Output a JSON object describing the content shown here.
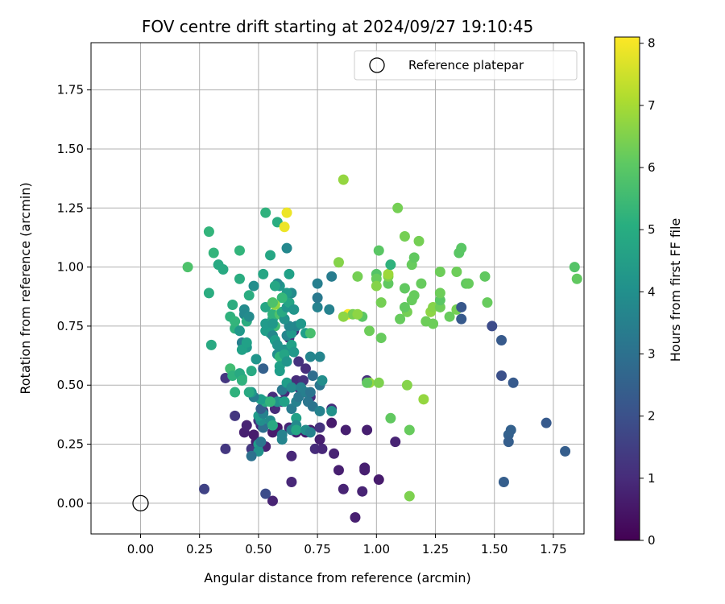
{
  "chart_data": {
    "type": "scatter",
    "title": "FOV centre drift starting at 2024/09/27 19:10:45",
    "xlabel": "Angular distance from reference (arcmin)",
    "ylabel": "Rotation from reference (arcmin)",
    "xlim": [
      -0.21,
      1.88
    ],
    "ylim": [
      -0.13,
      1.95
    ],
    "xticks": [
      "0.00",
      "0.25",
      "0.50",
      "0.75",
      "1.00",
      "1.25",
      "1.50",
      "1.75"
    ],
    "xtick_values": [
      0,
      0.25,
      0.5,
      0.75,
      1.0,
      1.25,
      1.5,
      1.75
    ],
    "yticks": [
      "0.00",
      "0.25",
      "0.50",
      "0.75",
      "1.00",
      "1.25",
      "1.50",
      "1.75"
    ],
    "ytick_values": [
      0,
      0.25,
      0.5,
      0.75,
      1.0,
      1.25,
      1.5,
      1.75
    ],
    "grid": true,
    "colorbar": {
      "label": "Hours from first FF file",
      "range": [
        0,
        8.1
      ],
      "ticks": [
        "0",
        "1",
        "2",
        "3",
        "4",
        "5",
        "6",
        "7",
        "8"
      ],
      "tick_values": [
        0,
        1,
        2,
        3,
        4,
        5,
        6,
        7,
        8
      ],
      "colormap": "viridis"
    },
    "legend": {
      "position": "top-right",
      "label": "Reference platepar"
    },
    "reference_point": {
      "x": 0.0,
      "y": 0.0
    },
    "points": [
      [
        0.91,
        -0.06,
        0.7
      ],
      [
        0.86,
        0.06,
        0.8
      ],
      [
        0.94,
        0.05,
        0.8
      ],
      [
        1.01,
        0.1,
        0.6
      ],
      [
        0.56,
        0.01,
        0.8
      ],
      [
        0.64,
        0.09,
        0.9
      ],
      [
        0.27,
        0.06,
        1.6
      ],
      [
        0.53,
        0.04,
        1.9
      ],
      [
        0.84,
        0.14,
        0.7
      ],
      [
        0.95,
        0.14,
        0.7
      ],
      [
        0.95,
        0.15,
        0.7
      ],
      [
        0.82,
        0.21,
        0.8
      ],
      [
        0.64,
        0.2,
        0.9
      ],
      [
        0.74,
        0.23,
        1.0
      ],
      [
        0.77,
        0.23,
        0.9
      ],
      [
        0.47,
        0.23,
        1.3
      ],
      [
        0.36,
        0.23,
        1.3
      ],
      [
        0.53,
        0.24,
        0.8
      ],
      [
        0.49,
        0.26,
        0.7
      ],
      [
        0.48,
        0.29,
        0.6
      ],
      [
        0.44,
        0.3,
        0.7
      ],
      [
        0.56,
        0.3,
        0.6
      ],
      [
        0.66,
        0.3,
        0.7
      ],
      [
        0.7,
        0.3,
        0.6
      ],
      [
        0.72,
        0.31,
        0.6
      ],
      [
        0.76,
        0.27,
        0.7
      ],
      [
        0.87,
        0.31,
        0.7
      ],
      [
        0.96,
        0.31,
        0.7
      ],
      [
        1.08,
        0.26,
        0.8
      ],
      [
        0.81,
        0.34,
        0.6
      ],
      [
        0.45,
        0.33,
        0.8
      ],
      [
        0.51,
        0.33,
        0.9
      ],
      [
        0.58,
        0.32,
        0.6
      ],
      [
        0.63,
        0.32,
        0.9
      ],
      [
        0.66,
        0.31,
        1.1
      ],
      [
        0.76,
        0.32,
        1.2
      ],
      [
        0.5,
        0.35,
        1.2
      ],
      [
        0.52,
        0.39,
        1.2
      ],
      [
        0.57,
        0.4,
        1.0
      ],
      [
        0.6,
        0.43,
        0.9
      ],
      [
        0.56,
        0.45,
        1.1
      ],
      [
        0.61,
        0.47,
        1.0
      ],
      [
        0.63,
        0.5,
        1.1
      ],
      [
        0.67,
        0.49,
        1.0
      ],
      [
        0.69,
        0.47,
        1.2
      ],
      [
        0.72,
        0.45,
        1.0
      ],
      [
        0.66,
        0.52,
        1.0
      ],
      [
        0.69,
        0.52,
        1.2
      ],
      [
        0.81,
        0.4,
        1.1
      ],
      [
        0.67,
        0.6,
        1.2
      ],
      [
        0.7,
        0.57,
        1.1
      ],
      [
        0.63,
        0.7,
        1.0
      ],
      [
        0.65,
        0.73,
        1.0
      ],
      [
        0.96,
        0.52,
        1.1
      ],
      [
        0.4,
        0.37,
        1.3
      ],
      [
        0.36,
        0.53,
        1.3
      ],
      [
        0.5,
        0.25,
        4.5
      ],
      [
        0.5,
        0.22,
        4.1
      ],
      [
        0.47,
        0.2,
        3.0
      ],
      [
        0.51,
        0.26,
        3.2
      ],
      [
        0.6,
        0.27,
        3.7
      ],
      [
        0.6,
        0.29,
        3.6
      ],
      [
        0.64,
        0.31,
        3.5
      ],
      [
        0.66,
        0.36,
        4.6
      ],
      [
        0.66,
        0.33,
        3.9
      ],
      [
        0.66,
        0.31,
        4.8
      ],
      [
        0.7,
        0.31,
        4.0
      ],
      [
        0.72,
        0.3,
        3.6
      ],
      [
        0.52,
        0.32,
        2.9
      ],
      [
        0.51,
        0.35,
        4.0
      ],
      [
        0.5,
        0.37,
        4.4
      ],
      [
        0.52,
        0.38,
        3.6
      ],
      [
        0.51,
        0.4,
        2.4
      ],
      [
        0.55,
        0.35,
        3.9
      ],
      [
        0.56,
        0.33,
        4.9
      ],
      [
        0.58,
        0.43,
        4.1
      ],
      [
        0.53,
        0.43,
        4.9
      ],
      [
        0.51,
        0.44,
        4.5
      ],
      [
        0.48,
        0.45,
        3.4
      ],
      [
        0.47,
        0.47,
        4.3
      ],
      [
        0.61,
        0.43,
        4.6
      ],
      [
        0.64,
        0.4,
        3.4
      ],
      [
        0.6,
        0.48,
        3.3
      ],
      [
        0.62,
        0.51,
        4.5
      ],
      [
        0.64,
        0.49,
        3.9
      ],
      [
        0.68,
        0.49,
        3.6
      ],
      [
        0.66,
        0.43,
        3.6
      ],
      [
        0.67,
        0.45,
        3.3
      ],
      [
        0.7,
        0.47,
        3.5
      ],
      [
        0.71,
        0.43,
        3.2
      ],
      [
        0.72,
        0.47,
        3.1
      ],
      [
        0.73,
        0.41,
        3.1
      ],
      [
        0.76,
        0.39,
        3.6
      ],
      [
        0.81,
        0.39,
        4.1
      ],
      [
        0.73,
        0.54,
        2.9
      ],
      [
        0.76,
        0.5,
        3.2
      ],
      [
        0.77,
        0.52,
        4.0
      ],
      [
        0.72,
        0.62,
        3.7
      ],
      [
        0.76,
        0.62,
        3.7
      ],
      [
        0.52,
        0.57,
        2.5
      ],
      [
        0.49,
        0.61,
        4.2
      ],
      [
        0.47,
        0.56,
        4.9
      ],
      [
        0.43,
        0.53,
        5.0
      ],
      [
        0.38,
        0.57,
        5.6
      ],
      [
        0.39,
        0.54,
        5.2
      ],
      [
        0.42,
        0.55,
        4.9
      ],
      [
        0.43,
        0.52,
        5.2
      ],
      [
        0.4,
        0.47,
        5.2
      ],
      [
        0.46,
        0.47,
        4.9
      ],
      [
        0.55,
        0.43,
        5.3
      ],
      [
        0.3,
        0.67,
        4.9
      ],
      [
        0.4,
        0.74,
        5.2
      ],
      [
        0.42,
        0.73,
        4.3
      ],
      [
        0.43,
        0.68,
        3.5
      ],
      [
        0.45,
        0.66,
        4.3
      ],
      [
        0.43,
        0.65,
        4.6
      ],
      [
        0.45,
        0.68,
        4.6
      ],
      [
        0.44,
        0.82,
        3.9
      ],
      [
        0.44,
        0.8,
        3.8
      ],
      [
        0.45,
        0.77,
        5.0
      ],
      [
        0.46,
        0.79,
        3.9
      ],
      [
        0.38,
        0.79,
        5.2
      ],
      [
        0.4,
        0.77,
        5.3
      ],
      [
        0.39,
        0.84,
        5.0
      ],
      [
        0.29,
        0.89,
        5.0
      ],
      [
        0.35,
        0.99,
        4.9
      ],
      [
        0.33,
        1.01,
        4.9
      ],
      [
        0.31,
        1.06,
        5.3
      ],
      [
        0.29,
        1.15,
        5.3
      ],
      [
        0.2,
        1.0,
        5.8
      ],
      [
        0.42,
        1.07,
        5.3
      ],
      [
        0.42,
        0.95,
        5.0
      ],
      [
        0.46,
        0.88,
        5.0
      ],
      [
        0.48,
        0.92,
        4.0
      ],
      [
        0.52,
        0.97,
        4.8
      ],
      [
        0.53,
        0.83,
        4.8
      ],
      [
        0.53,
        0.73,
        4.5
      ],
      [
        0.53,
        0.76,
        4.4
      ],
      [
        0.56,
        0.78,
        4.8
      ],
      [
        0.56,
        0.8,
        5.2
      ],
      [
        0.57,
        0.75,
        5.6
      ],
      [
        0.59,
        0.8,
        5.8
      ],
      [
        0.56,
        0.76,
        4.3
      ],
      [
        0.55,
        0.72,
        4.5
      ],
      [
        0.56,
        0.71,
        3.8
      ],
      [
        0.57,
        0.69,
        4.5
      ],
      [
        0.58,
        0.67,
        4.1
      ],
      [
        0.58,
        0.63,
        4.0
      ],
      [
        0.59,
        0.62,
        5.3
      ],
      [
        0.59,
        0.58,
        4.6
      ],
      [
        0.59,
        0.56,
        4.5
      ],
      [
        0.61,
        0.65,
        4.1
      ],
      [
        0.61,
        0.63,
        4.7
      ],
      [
        0.62,
        0.6,
        4.2
      ],
      [
        0.62,
        0.71,
        3.7
      ],
      [
        0.64,
        0.72,
        4.3
      ],
      [
        0.64,
        0.67,
        4.6
      ],
      [
        0.65,
        0.64,
        4.3
      ],
      [
        0.66,
        0.75,
        3.7
      ],
      [
        0.63,
        0.75,
        3.8
      ],
      [
        0.61,
        0.78,
        4.1
      ],
      [
        0.6,
        0.81,
        4.9
      ],
      [
        0.62,
        0.83,
        4.2
      ],
      [
        0.63,
        0.85,
        4.7
      ],
      [
        0.65,
        0.82,
        4.2
      ],
      [
        0.64,
        0.89,
        3.9
      ],
      [
        0.62,
        0.89,
        4.4
      ],
      [
        0.59,
        0.92,
        4.3
      ],
      [
        0.58,
        0.93,
        3.9
      ],
      [
        0.57,
        0.92,
        4.8
      ],
      [
        0.6,
        0.87,
        5.4
      ],
      [
        0.63,
        0.97,
        4.6
      ],
      [
        0.55,
        1.05,
        4.8
      ],
      [
        0.58,
        1.19,
        5.0
      ],
      [
        0.53,
        1.23,
        5.2
      ],
      [
        0.62,
        1.08,
        3.8
      ],
      [
        0.68,
        0.76,
        4.3
      ],
      [
        0.7,
        0.72,
        4.5
      ],
      [
        0.72,
        0.72,
        5.7
      ],
      [
        0.75,
        0.83,
        3.6
      ],
      [
        0.75,
        0.87,
        3.3
      ],
      [
        0.75,
        0.93,
        3.5
      ],
      [
        0.8,
        0.82,
        3.6
      ],
      [
        0.81,
        0.96,
        3.4
      ],
      [
        0.57,
        0.84,
        6.7
      ],
      [
        0.56,
        0.85,
        5.8
      ],
      [
        0.62,
        1.23,
        7.9
      ],
      [
        0.61,
        1.17,
        7.9
      ],
      [
        0.88,
        0.8,
        8.0
      ],
      [
        0.86,
        1.37,
        6.8
      ],
      [
        0.84,
        1.02,
        6.6
      ],
      [
        0.92,
        0.96,
        6.4
      ],
      [
        0.9,
        0.8,
        6.4
      ],
      [
        0.94,
        0.79,
        6.0
      ],
      [
        0.92,
        0.8,
        6.7
      ],
      [
        0.86,
        0.79,
        6.7
      ],
      [
        0.97,
        0.73,
        6.3
      ],
      [
        0.97,
        0.51,
        6.8
      ],
      [
        0.96,
        0.51,
        6.1
      ],
      [
        1.0,
        0.97,
        5.9
      ],
      [
        1.0,
        0.95,
        6.2
      ],
      [
        1.0,
        0.92,
        6.6
      ],
      [
        1.05,
        0.93,
        6.1
      ],
      [
        1.05,
        0.96,
        6.5
      ],
      [
        1.05,
        0.97,
        6.9
      ],
      [
        1.06,
        1.01,
        5.2
      ],
      [
        1.01,
        1.07,
        6.0
      ],
      [
        1.02,
        0.85,
        6.4
      ],
      [
        1.02,
        0.7,
        6.2
      ],
      [
        1.01,
        0.51,
        6.5
      ],
      [
        1.06,
        0.36,
        6.1
      ],
      [
        1.09,
        1.25,
        6.4
      ],
      [
        1.12,
        1.13,
        6.4
      ],
      [
        1.15,
        1.01,
        6.2
      ],
      [
        1.16,
        1.04,
        6.1
      ],
      [
        1.18,
        1.11,
        6.4
      ],
      [
        1.16,
        0.88,
        6.2
      ],
      [
        1.15,
        0.86,
        6.2
      ],
      [
        1.13,
        0.81,
        6.4
      ],
      [
        1.12,
        0.83,
        6.1
      ],
      [
        1.12,
        0.91,
        6.1
      ],
      [
        1.1,
        0.78,
        6.2
      ],
      [
        1.19,
        0.93,
        6.2
      ],
      [
        1.21,
        0.77,
        6.3
      ],
      [
        1.24,
        0.76,
        6.3
      ],
      [
        1.23,
        0.81,
        6.7
      ],
      [
        1.24,
        0.83,
        6.6
      ],
      [
        1.27,
        0.83,
        6.3
      ],
      [
        1.27,
        0.86,
        6.0
      ],
      [
        1.27,
        0.89,
        6.3
      ],
      [
        1.27,
        0.98,
        6.3
      ],
      [
        1.31,
        0.79,
        6.2
      ],
      [
        1.34,
        0.82,
        6.4
      ],
      [
        1.34,
        0.98,
        6.3
      ],
      [
        1.35,
        1.06,
        6.0
      ],
      [
        1.36,
        1.08,
        6.0
      ],
      [
        1.38,
        0.93,
        6.1
      ],
      [
        1.39,
        0.93,
        6.2
      ],
      [
        1.46,
        0.96,
        6.1
      ],
      [
        1.47,
        0.85,
        6.2
      ],
      [
        1.13,
        0.5,
        6.6
      ],
      [
        1.14,
        0.31,
        6.2
      ],
      [
        1.2,
        0.44,
        6.8
      ],
      [
        1.14,
        0.03,
        6.5
      ],
      [
        1.84,
        1.0,
        5.9
      ],
      [
        1.85,
        0.95,
        6.1
      ],
      [
        1.36,
        0.83,
        2.2
      ],
      [
        1.36,
        0.78,
        2.3
      ],
      [
        1.49,
        0.75,
        1.9
      ],
      [
        1.53,
        0.69,
        2.3
      ],
      [
        1.53,
        0.54,
        2.0
      ],
      [
        1.58,
        0.51,
        2.3
      ],
      [
        1.57,
        0.31,
        2.5
      ],
      [
        1.56,
        0.29,
        2.5
      ],
      [
        1.56,
        0.26,
        2.4
      ],
      [
        1.54,
        0.09,
        2.4
      ],
      [
        1.72,
        0.34,
        2.3
      ],
      [
        1.8,
        0.22,
        2.4
      ]
    ]
  }
}
